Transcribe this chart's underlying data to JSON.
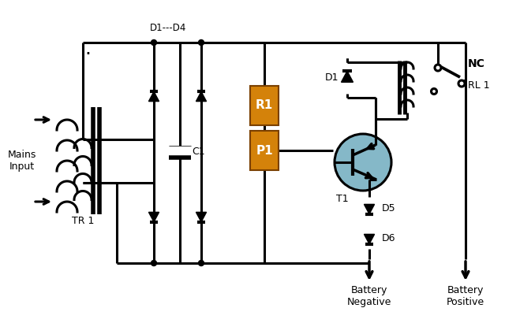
{
  "bg_color": "#ffffff",
  "line_color": "#000000",
  "lw": 2.2,
  "resistor_color": "#d4820a",
  "transistor_fill": "#85b8c8",
  "labels": {
    "mains_input": "Mains\nInput",
    "tr1": "TR 1",
    "d1d4": "D1---D4",
    "c1": "C1",
    "r1": "R1",
    "p1": "P1",
    "t1": "T1",
    "d1": "D1",
    "d5": "D5",
    "d6": "D6",
    "rl1": "RL 1",
    "nc": "NC",
    "battery_neg": "Battery\nNegative",
    "battery_pos": "Battery\nPositive"
  }
}
